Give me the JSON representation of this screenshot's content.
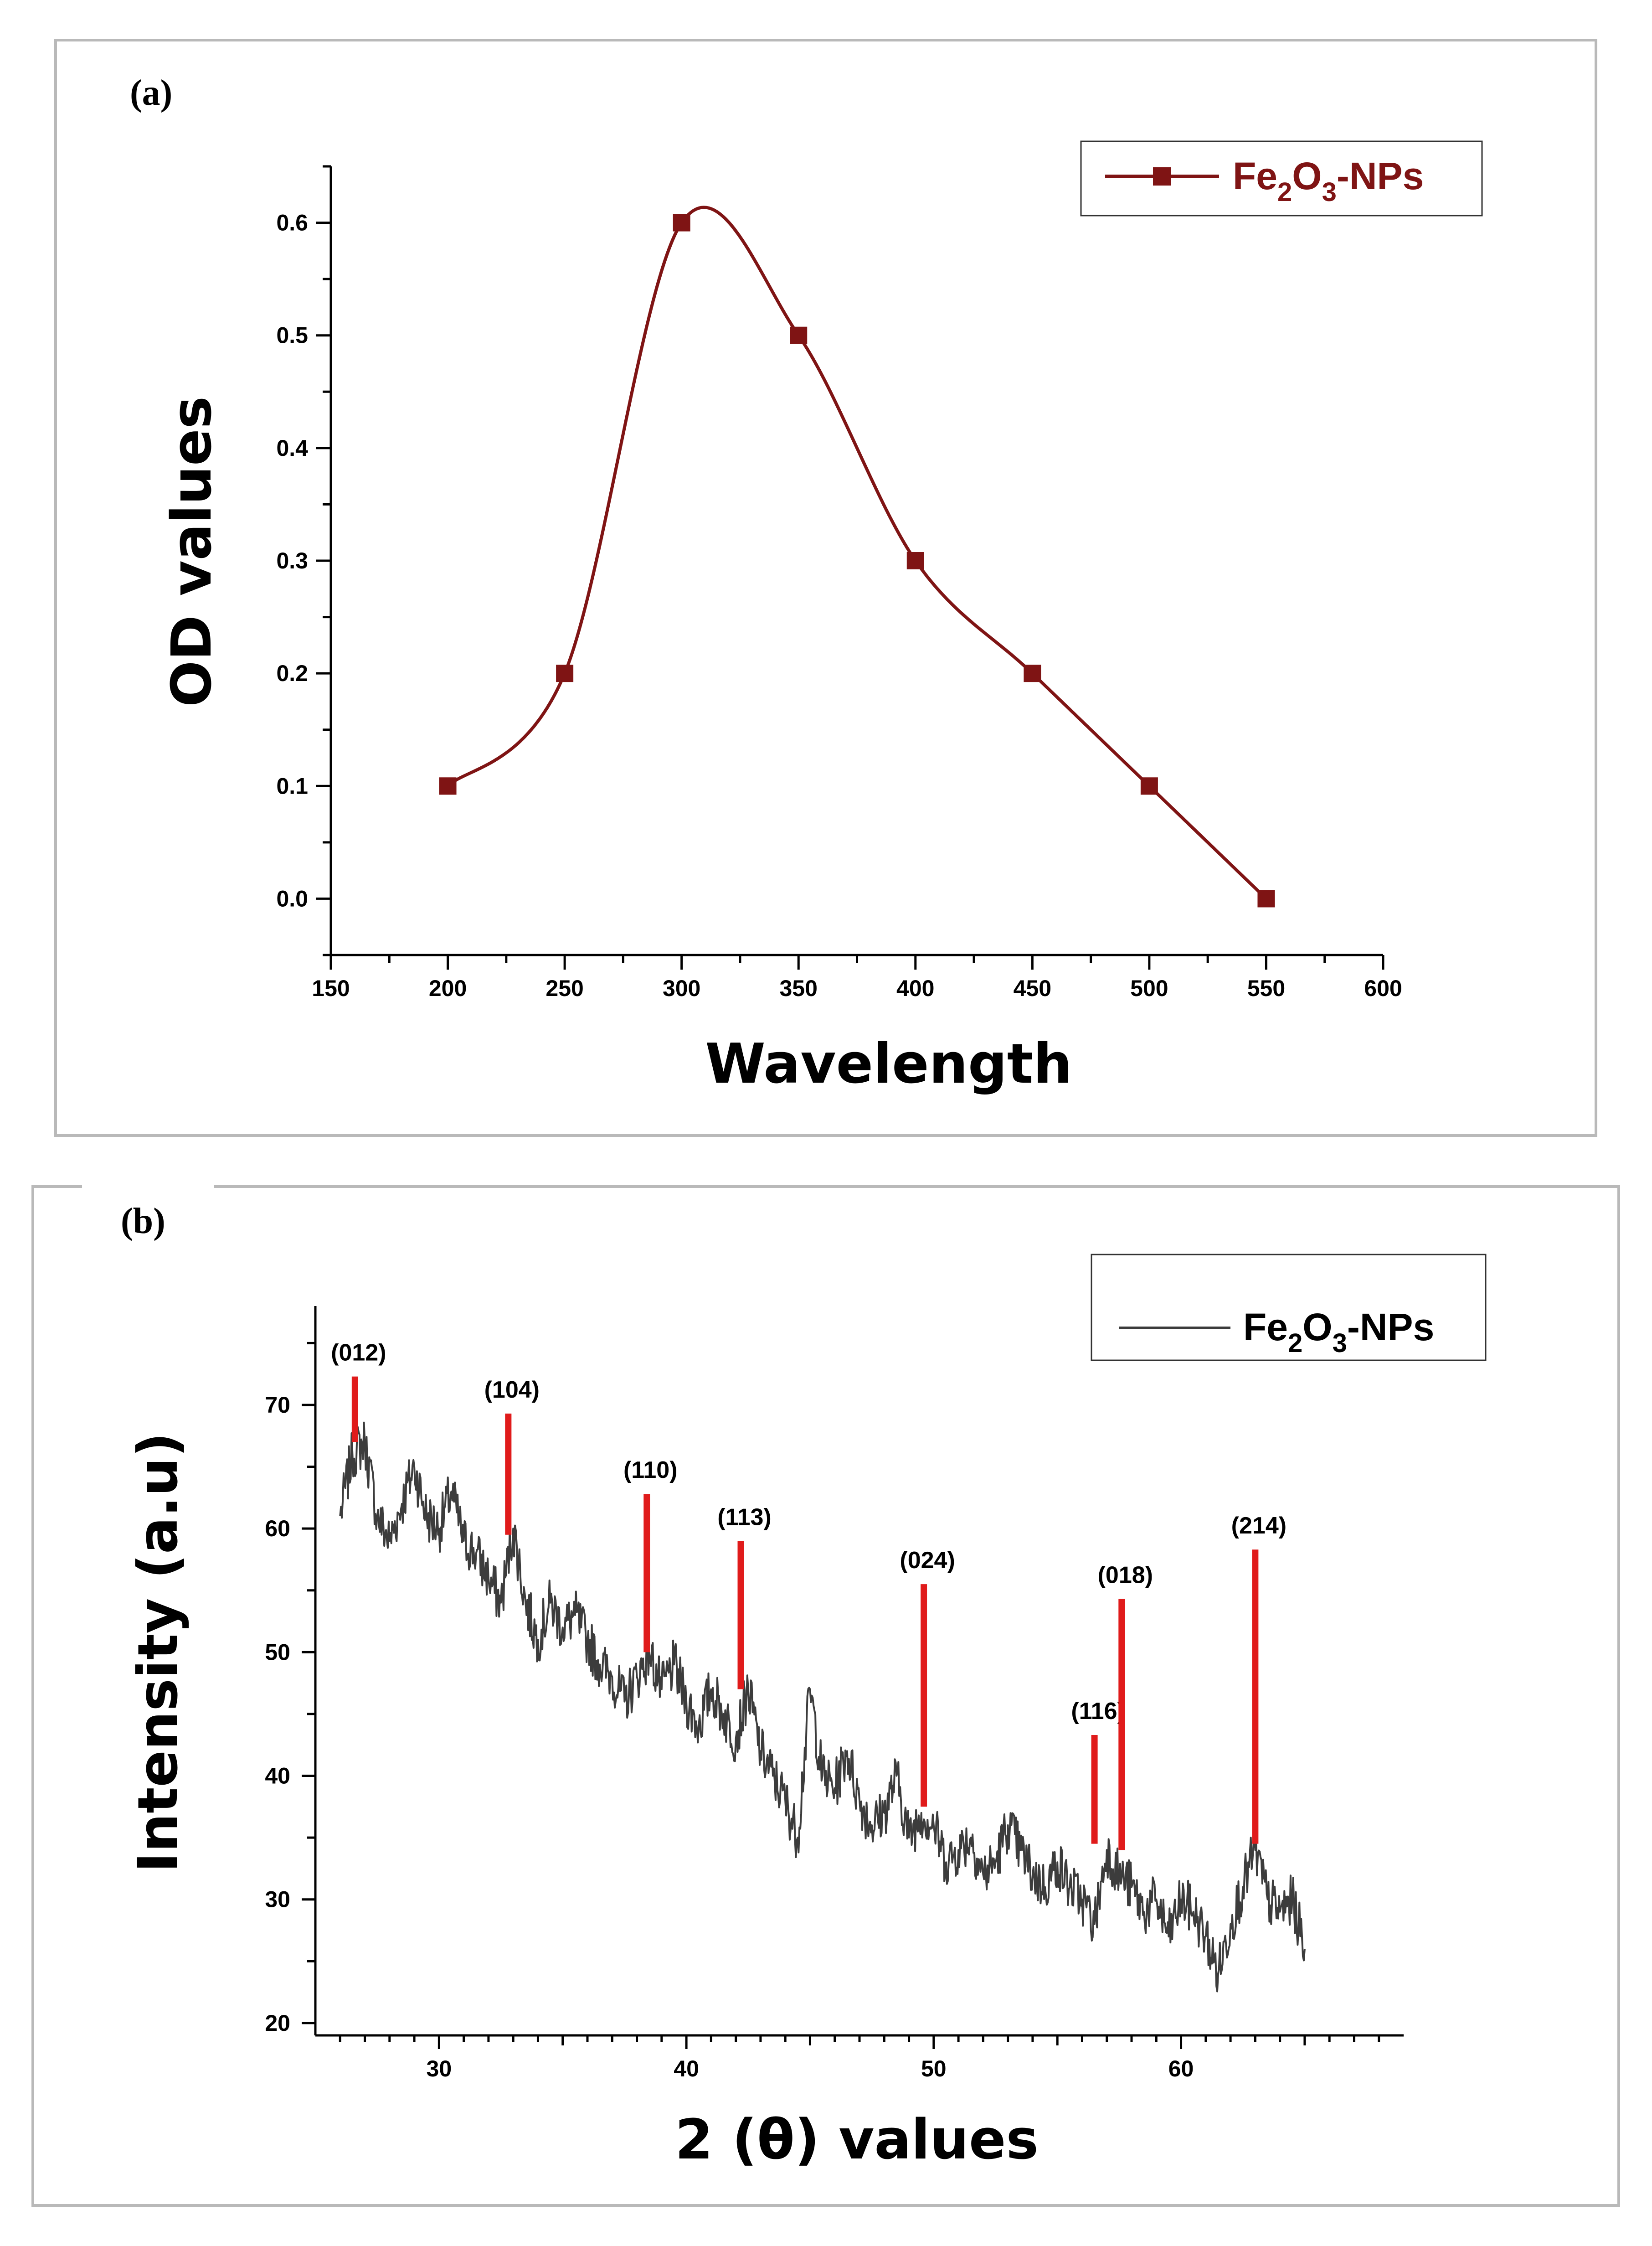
{
  "chart_data": [
    {
      "panel": "(a)",
      "type": "line",
      "xlabel": "Wavelength",
      "ylabel": "OD values",
      "xlim": [
        150,
        600
      ],
      "ylim": [
        -0.05,
        0.65
      ],
      "xticks": [
        150,
        200,
        250,
        300,
        350,
        400,
        450,
        500,
        550,
        600
      ],
      "yticks": [
        0.0,
        0.1,
        0.2,
        0.3,
        0.4,
        0.5,
        0.6
      ],
      "ytick_labels": [
        "0.0",
        "0.1",
        "0.2",
        "0.3",
        "0.4",
        "0.5",
        "0.6"
      ],
      "series": [
        {
          "name": "Fe2O3-NPs",
          "legend_main": "Fe",
          "legend_sub1": "2",
          "legend_mid": "O",
          "legend_sub2": "3",
          "legend_tail": "-NPs",
          "color": "#7f1414",
          "marker": "square",
          "smooth": true,
          "x": [
            200,
            250,
            300,
            350,
            400,
            450,
            500,
            550
          ],
          "y": [
            0.1,
            0.2,
            0.6,
            0.5,
            0.3,
            0.2,
            0.1,
            0.0
          ]
        }
      ],
      "grid": false,
      "legend_position": "top-right"
    },
    {
      "panel": "(b)",
      "type": "line",
      "xlabel": "2 (θ) values",
      "ylabel": "Intensity (a.u)",
      "xlim": [
        25,
        69
      ],
      "ylim": [
        19,
        78
      ],
      "xticks": [
        30,
        40,
        50,
        60
      ],
      "yticks": [
        20,
        30,
        40,
        50,
        60,
        70
      ],
      "series": [
        {
          "name": "Fe2O3-NPs",
          "legend_main": "Fe",
          "legend_sub1": "2",
          "legend_mid": "O",
          "legend_sub2": "3",
          "legend_tail": "-NPs",
          "color": "#3c3c3c",
          "x": [
            26.0,
            26.5,
            27.0,
            27.5,
            28.0,
            28.5,
            29.0,
            29.5,
            30.0,
            30.5,
            31.0,
            31.5,
            32.0,
            32.5,
            33.0,
            33.5,
            34.0,
            34.5,
            35.0,
            35.5,
            36.0,
            36.5,
            37.0,
            37.5,
            38.0,
            38.5,
            39.0,
            39.5,
            40.0,
            40.5,
            41.0,
            41.5,
            42.0,
            42.5,
            43.0,
            43.5,
            44.0,
            44.5,
            45.0,
            45.5,
            46.0,
            46.5,
            47.0,
            47.5,
            48.0,
            48.5,
            49.0,
            49.5,
            50.0,
            50.5,
            51.0,
            51.5,
            52.0,
            52.5,
            53.0,
            53.5,
            54.0,
            54.5,
            55.0,
            55.5,
            56.0,
            56.5,
            57.0,
            57.5,
            58.0,
            58.5,
            59.0,
            59.5,
            60.0,
            60.5,
            61.0,
            61.5,
            62.0,
            62.5,
            63.0,
            63.5,
            64.0,
            64.5,
            65.0
          ],
          "y": [
            61,
            66,
            67,
            61,
            59,
            62,
            65,
            61,
            60,
            63,
            59,
            58,
            56,
            54,
            60,
            54,
            51,
            54,
            52,
            53,
            51,
            49,
            48,
            46,
            48,
            50,
            47,
            49,
            46,
            44,
            47,
            45,
            43,
            47,
            42,
            40,
            38,
            35,
            47,
            40,
            39,
            42,
            38,
            36,
            37,
            40,
            35,
            37,
            36,
            33,
            34,
            35,
            32,
            33,
            36,
            34,
            32,
            31,
            33,
            31,
            30,
            28,
            34,
            32,
            31,
            29,
            30,
            27,
            30,
            29,
            27,
            24,
            28,
            31,
            34,
            30,
            29,
            30,
            26
          ]
        }
      ],
      "peaks": [
        {
          "label": "(012)",
          "x": 26.6,
          "base": 67.0,
          "top": 72.3
        },
        {
          "label": "(104)",
          "x": 32.8,
          "base": 59.5,
          "top": 69.3
        },
        {
          "label": "(110)",
          "x": 38.4,
          "base": 50.0,
          "top": 62.8
        },
        {
          "label": "(113)",
          "x": 42.2,
          "base": 47.0,
          "top": 59.0
        },
        {
          "label": "(024)",
          "x": 49.6,
          "base": 37.5,
          "top": 55.5
        },
        {
          "label": "(116)",
          "x": 56.5,
          "base": 34.5,
          "top": 43.3
        },
        {
          "label": "(018)",
          "x": 57.6,
          "base": 34.0,
          "top": 54.3
        },
        {
          "label": "(214)",
          "x": 63.0,
          "base": 34.5,
          "top": 58.3
        }
      ],
      "peak_color": "#e01b1b",
      "grid": false,
      "legend_position": "top-right"
    }
  ]
}
